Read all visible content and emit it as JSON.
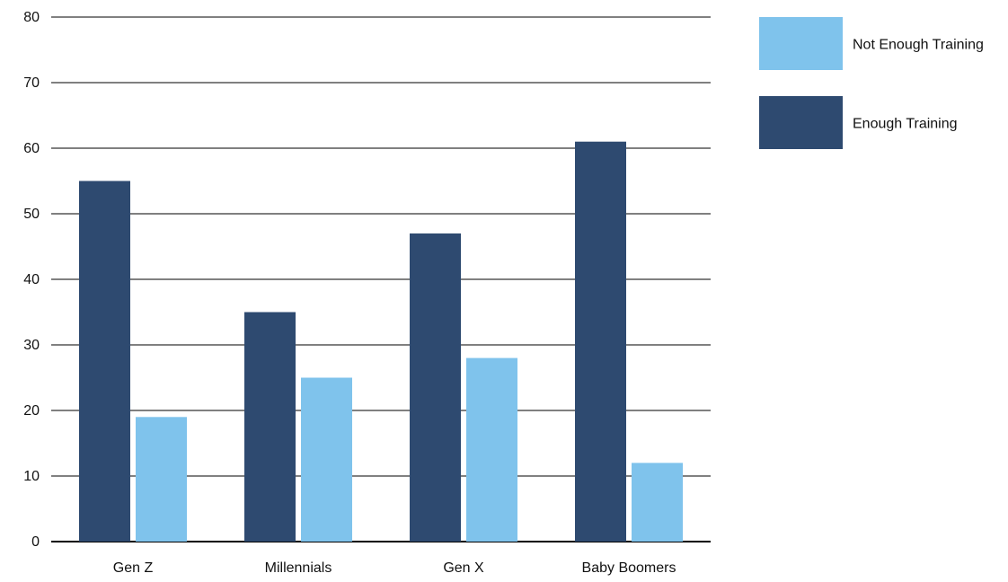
{
  "chart_data": {
    "type": "bar",
    "categories": [
      "Gen Z",
      "Millennials",
      "Gen X",
      "Baby Boomers"
    ],
    "series": [
      {
        "name": "Enough Training",
        "values": [
          55,
          35,
          47,
          61
        ],
        "color": "#2e4a70"
      },
      {
        "name": "Not Enough Training",
        "values": [
          19,
          25,
          28,
          12
        ],
        "color": "#7fc3ec"
      }
    ],
    "legend_order": [
      "Not Enough Training",
      "Enough Training"
    ],
    "legend_position": "top-right",
    "ylim": [
      0,
      80
    ],
    "yticks": [
      0,
      10,
      20,
      30,
      40,
      50,
      60,
      70,
      80
    ],
    "grid": true,
    "title": "",
    "xlabel": "",
    "ylabel": ""
  }
}
